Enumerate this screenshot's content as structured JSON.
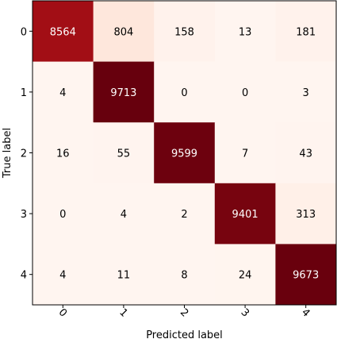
{
  "chart_data": {
    "type": "heatmap",
    "title": "",
    "xlabel": "Predicted label",
    "ylabel": "True label",
    "x_categories": [
      "0",
      "1",
      "2",
      "3",
      "4"
    ],
    "y_categories": [
      "0",
      "1",
      "2",
      "3",
      "4"
    ],
    "matrix": [
      [
        8564,
        804,
        158,
        13,
        181
      ],
      [
        4,
        9713,
        0,
        0,
        3
      ],
      [
        16,
        55,
        9599,
        7,
        43
      ],
      [
        0,
        4,
        2,
        9401,
        313
      ],
      [
        4,
        11,
        8,
        24,
        9673
      ]
    ],
    "colormap": "Reds",
    "value_range": [
      0,
      9713
    ],
    "grid": false
  }
}
